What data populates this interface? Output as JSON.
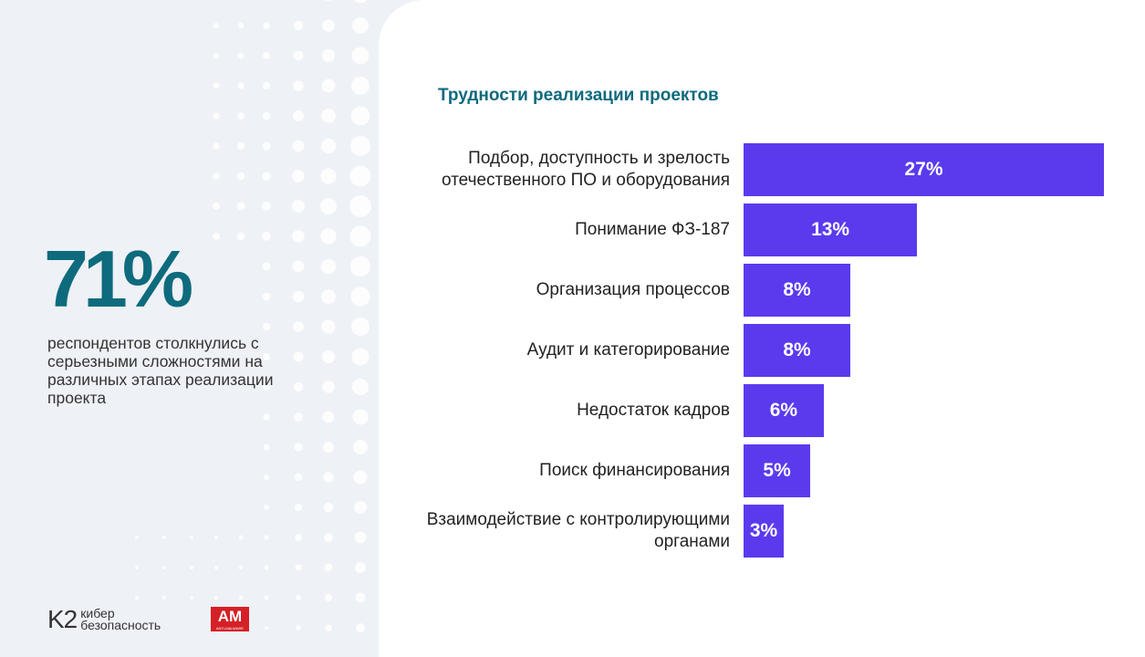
{
  "headline": {
    "value": "71%",
    "text": "респондентов столкнулись с серьезными сложностями на различных этапах реализации проекта"
  },
  "logos": {
    "k2_mark": "K2",
    "k2_text_1": "кибер",
    "k2_text_2": "безопасность",
    "am_mark": "AM",
    "am_text": "ANTI-MALWARE"
  },
  "colors": {
    "bar": "#5b3aee",
    "title": "#0e6a7e",
    "headline": "#0d6b7d"
  },
  "chart_data": {
    "type": "bar",
    "orientation": "horizontal",
    "title": "Трудности реализации проектов",
    "categories": [
      "Подбор, доступность и зрелость отечественного ПО и оборудования",
      "Понимание ФЗ-187",
      "Организация процессов",
      "Аудит и категорирование",
      "Недостаток кадров",
      "Поиск финансирования",
      "Взаимодействие с контролирующими органами"
    ],
    "values": [
      27,
      13,
      8,
      8,
      6,
      5,
      3
    ],
    "data_labels": [
      "27%",
      "13%",
      "8%",
      "8%",
      "6%",
      "5%",
      "3%"
    ],
    "unit": "%",
    "xlim": [
      0,
      27
    ],
    "grid": false
  }
}
